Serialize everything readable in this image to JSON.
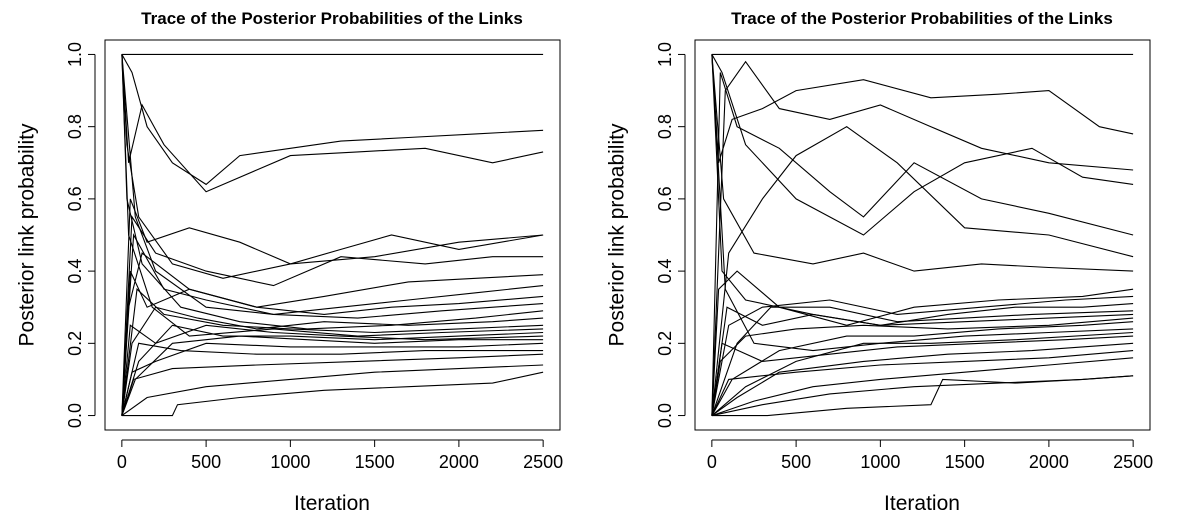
{
  "chart_data": [
    {
      "type": "line",
      "title": "Trace of the Posterior Probabilities of the Links",
      "xlabel": "Iteration",
      "ylabel": "Posterior link probability",
      "xlim": [
        0,
        2500
      ],
      "ylim": [
        0,
        1
      ],
      "xticks": [
        "0",
        "500",
        "1000",
        "1500",
        "2000",
        "2500"
      ],
      "yticks": [
        "0.0",
        "0.2",
        "0.4",
        "0.6",
        "0.8",
        "1.0"
      ],
      "grid": false,
      "legend": "none",
      "series": [
        {
          "x": [
            0,
            2500
          ],
          "y": [
            1.0,
            1.0
          ]
        },
        {
          "x": [
            0,
            60,
            150,
            300,
            500,
            700,
            1000,
            1300,
            1700,
            2100,
            2500
          ],
          "y": [
            1.0,
            0.95,
            0.8,
            0.7,
            0.64,
            0.72,
            0.74,
            0.76,
            0.77,
            0.78,
            0.79
          ]
        },
        {
          "x": [
            0,
            40,
            120,
            250,
            500,
            800,
            1000,
            1400,
            1800,
            2200,
            2500
          ],
          "y": [
            1.0,
            0.7,
            0.86,
            0.75,
            0.62,
            0.68,
            0.72,
            0.73,
            0.74,
            0.7,
            0.73
          ]
        },
        {
          "x": [
            0,
            50,
            150,
            400,
            700,
            1000,
            1300,
            1600,
            2000,
            2500
          ],
          "y": [
            0.0,
            0.6,
            0.48,
            0.52,
            0.48,
            0.42,
            0.46,
            0.5,
            0.46,
            0.5
          ]
        },
        {
          "x": [
            0,
            30,
            100,
            300,
            600,
            1000,
            1500,
            2000,
            2500
          ],
          "y": [
            1.0,
            0.75,
            0.55,
            0.42,
            0.38,
            0.42,
            0.44,
            0.48,
            0.5
          ]
        },
        {
          "x": [
            0,
            60,
            200,
            500,
            900,
            1300,
            1800,
            2200,
            2500
          ],
          "y": [
            0.0,
            0.55,
            0.45,
            0.4,
            0.36,
            0.44,
            0.42,
            0.44,
            0.44
          ]
        },
        {
          "x": [
            0,
            40,
            120,
            400,
            800,
            1200,
            1700,
            2100,
            2500
          ],
          "y": [
            0.0,
            0.3,
            0.45,
            0.35,
            0.3,
            0.33,
            0.37,
            0.38,
            0.39
          ]
        },
        {
          "x": [
            0,
            80,
            200,
            500,
            900,
            1300,
            1700,
            2100,
            2500
          ],
          "y": [
            1.0,
            0.55,
            0.4,
            0.3,
            0.28,
            0.3,
            0.32,
            0.34,
            0.36
          ]
        },
        {
          "x": [
            0,
            50,
            150,
            400,
            800,
            1200,
            1600,
            2000,
            2500
          ],
          "y": [
            0.0,
            0.4,
            0.3,
            0.35,
            0.3,
            0.28,
            0.3,
            0.31,
            0.33
          ]
        },
        {
          "x": [
            0,
            70,
            250,
            500,
            900,
            1400,
            1900,
            2500
          ],
          "y": [
            0.0,
            0.5,
            0.35,
            0.32,
            0.28,
            0.27,
            0.29,
            0.31
          ]
        },
        {
          "x": [
            0,
            30,
            120,
            350,
            700,
            1100,
            1600,
            2100,
            2500
          ],
          "y": [
            1.0,
            0.6,
            0.42,
            0.3,
            0.26,
            0.24,
            0.25,
            0.27,
            0.29
          ]
        },
        {
          "x": [
            0,
            60,
            200,
            450,
            800,
            1200,
            1700,
            2200,
            2500
          ],
          "y": [
            0.0,
            0.2,
            0.3,
            0.27,
            0.24,
            0.26,
            0.25,
            0.26,
            0.27
          ]
        },
        {
          "x": [
            0,
            90,
            250,
            600,
            1000,
            1500,
            2000,
            2500
          ],
          "y": [
            0.0,
            0.35,
            0.28,
            0.25,
            0.24,
            0.23,
            0.24,
            0.25
          ]
        },
        {
          "x": [
            0,
            40,
            180,
            400,
            900,
            1400,
            1900,
            2500
          ],
          "y": [
            1.0,
            0.5,
            0.3,
            0.22,
            0.24,
            0.22,
            0.23,
            0.24
          ]
        },
        {
          "x": [
            0,
            100,
            300,
            600,
            1000,
            1500,
            2000,
            2500
          ],
          "y": [
            0.0,
            0.15,
            0.25,
            0.22,
            0.22,
            0.21,
            0.22,
            0.23
          ]
        },
        {
          "x": [
            0,
            50,
            200,
            500,
            900,
            1300,
            1800,
            2500
          ],
          "y": [
            0.0,
            0.25,
            0.2,
            0.25,
            0.23,
            0.22,
            0.21,
            0.22
          ]
        },
        {
          "x": [
            0,
            80,
            300,
            700,
            1100,
            1500,
            2000,
            2500
          ],
          "y": [
            0.0,
            0.1,
            0.2,
            0.22,
            0.21,
            0.2,
            0.21,
            0.21
          ]
        },
        {
          "x": [
            0,
            60,
            200,
            500,
            1000,
            1500,
            2000,
            2500
          ],
          "y": [
            0.0,
            0.12,
            0.15,
            0.2,
            0.19,
            0.19,
            0.19,
            0.2
          ]
        },
        {
          "x": [
            0,
            100,
            350,
            800,
            1300,
            1800,
            2500
          ],
          "y": [
            0.0,
            0.2,
            0.18,
            0.17,
            0.17,
            0.18,
            0.18
          ]
        },
        {
          "x": [
            0,
            70,
            300,
            800,
            1400,
            2000,
            2500
          ],
          "y": [
            0.0,
            0.1,
            0.13,
            0.14,
            0.15,
            0.16,
            0.17
          ]
        },
        {
          "x": [
            0,
            150,
            500,
            1000,
            1500,
            2000,
            2500
          ],
          "y": [
            0.0,
            0.05,
            0.08,
            0.1,
            0.12,
            0.13,
            0.14
          ]
        },
        {
          "x": [
            0,
            300,
            330,
            700,
            1200,
            1700,
            2200,
            2500
          ],
          "y": [
            0.0,
            0.0,
            0.03,
            0.05,
            0.07,
            0.08,
            0.09,
            0.12
          ]
        }
      ]
    },
    {
      "type": "line",
      "title": "Trace of the Posterior Probabilities of the Links",
      "xlabel": "Iteration",
      "ylabel": "Posterior link probability",
      "xlim": [
        0,
        2500
      ],
      "ylim": [
        0,
        1
      ],
      "xticks": [
        "0",
        "500",
        "1000",
        "1500",
        "2000",
        "2500"
      ],
      "yticks": [
        "0.0",
        "0.2",
        "0.4",
        "0.6",
        "0.8",
        "1.0"
      ],
      "grid": false,
      "legend": "none",
      "series": [
        {
          "x": [
            0,
            2500
          ],
          "y": [
            1.0,
            1.0
          ]
        },
        {
          "x": [
            0,
            40,
            120,
            300,
            500,
            900,
            1300,
            1700,
            2000,
            2300,
            2500
          ],
          "y": [
            1.0,
            0.7,
            0.82,
            0.85,
            0.9,
            0.93,
            0.88,
            0.89,
            0.9,
            0.8,
            0.78
          ]
        },
        {
          "x": [
            0,
            80,
            200,
            400,
            700,
            1000,
            1300,
            1600,
            2000,
            2500
          ],
          "y": [
            0.0,
            0.9,
            0.98,
            0.85,
            0.82,
            0.86,
            0.8,
            0.74,
            0.7,
            0.68
          ]
        },
        {
          "x": [
            0,
            60,
            200,
            500,
            900,
            1200,
            1500,
            1900,
            2200,
            2500
          ],
          "y": [
            1.0,
            0.95,
            0.75,
            0.6,
            0.5,
            0.62,
            0.7,
            0.74,
            0.66,
            0.64
          ]
        },
        {
          "x": [
            0,
            50,
            150,
            400,
            700,
            900,
            1200,
            1600,
            2000,
            2500
          ],
          "y": [
            0.0,
            0.95,
            0.8,
            0.74,
            0.62,
            0.55,
            0.7,
            0.6,
            0.56,
            0.5
          ]
        },
        {
          "x": [
            0,
            100,
            300,
            500,
            800,
            1100,
            1500,
            2000,
            2500
          ],
          "y": [
            0.0,
            0.45,
            0.6,
            0.72,
            0.8,
            0.7,
            0.52,
            0.5,
            0.44
          ]
        },
        {
          "x": [
            0,
            70,
            250,
            600,
            900,
            1200,
            1600,
            2000,
            2500
          ],
          "y": [
            1.0,
            0.6,
            0.45,
            0.42,
            0.45,
            0.4,
            0.42,
            0.41,
            0.4
          ]
        },
        {
          "x": [
            0,
            40,
            150,
            400,
            800,
            1200,
            1700,
            2200,
            2500
          ],
          "y": [
            0.0,
            0.35,
            0.4,
            0.3,
            0.25,
            0.3,
            0.32,
            0.33,
            0.35
          ]
        },
        {
          "x": [
            0,
            100,
            300,
            700,
            1100,
            1600,
            2100,
            2500
          ],
          "y": [
            0.0,
            0.25,
            0.3,
            0.32,
            0.28,
            0.3,
            0.32,
            0.33
          ]
        },
        {
          "x": [
            0,
            60,
            200,
            600,
            1000,
            1400,
            1800,
            2200,
            2500
          ],
          "y": [
            1.0,
            0.4,
            0.32,
            0.28,
            0.25,
            0.28,
            0.3,
            0.3,
            0.31
          ]
        },
        {
          "x": [
            0,
            150,
            350,
            700,
            1100,
            1500,
            1900,
            2500
          ],
          "y": [
            0.0,
            0.2,
            0.3,
            0.3,
            0.26,
            0.27,
            0.28,
            0.29
          ]
        },
        {
          "x": [
            0,
            90,
            300,
            600,
            1000,
            1500,
            2000,
            2500
          ],
          "y": [
            0.0,
            0.3,
            0.25,
            0.28,
            0.25,
            0.26,
            0.27,
            0.28
          ]
        },
        {
          "x": [
            0,
            50,
            200,
            500,
            900,
            1400,
            2000,
            2500
          ],
          "y": [
            0.0,
            0.15,
            0.22,
            0.24,
            0.25,
            0.24,
            0.25,
            0.27
          ]
        },
        {
          "x": [
            0,
            120,
            400,
            800,
            1200,
            1700,
            2200,
            2500
          ],
          "y": [
            0.0,
            0.1,
            0.18,
            0.22,
            0.22,
            0.24,
            0.25,
            0.26
          ]
        },
        {
          "x": [
            0,
            80,
            250,
            600,
            1000,
            1500,
            2000,
            2500
          ],
          "y": [
            1.0,
            0.35,
            0.2,
            0.18,
            0.2,
            0.22,
            0.23,
            0.24
          ]
        },
        {
          "x": [
            0,
            200,
            500,
            900,
            1300,
            1800,
            2500
          ],
          "y": [
            0.0,
            0.08,
            0.15,
            0.2,
            0.2,
            0.21,
            0.23
          ]
        },
        {
          "x": [
            0,
            60,
            300,
            700,
            1100,
            1600,
            2100,
            2500
          ],
          "y": [
            0.0,
            0.2,
            0.15,
            0.17,
            0.19,
            0.2,
            0.21,
            0.22
          ]
        },
        {
          "x": [
            0,
            150,
            400,
            900,
            1400,
            1900,
            2500
          ],
          "y": [
            0.0,
            0.05,
            0.12,
            0.15,
            0.17,
            0.18,
            0.2
          ]
        },
        {
          "x": [
            0,
            100,
            500,
            1000,
            1500,
            2000,
            2500
          ],
          "y": [
            0.0,
            0.1,
            0.12,
            0.14,
            0.15,
            0.16,
            0.18
          ]
        },
        {
          "x": [
            0,
            250,
            600,
            1000,
            1500,
            2000,
            2500
          ],
          "y": [
            0.0,
            0.04,
            0.08,
            0.1,
            0.12,
            0.14,
            0.16
          ]
        },
        {
          "x": [
            0,
            300,
            700,
            1200,
            1700,
            2200,
            2500
          ],
          "y": [
            0.0,
            0.03,
            0.06,
            0.08,
            0.09,
            0.1,
            0.11
          ]
        },
        {
          "x": [
            0,
            330,
            800,
            1300,
            1370,
            1800,
            2200,
            2500
          ],
          "y": [
            0.0,
            0.0,
            0.02,
            0.03,
            0.1,
            0.09,
            0.1,
            0.11
          ]
        }
      ]
    }
  ]
}
